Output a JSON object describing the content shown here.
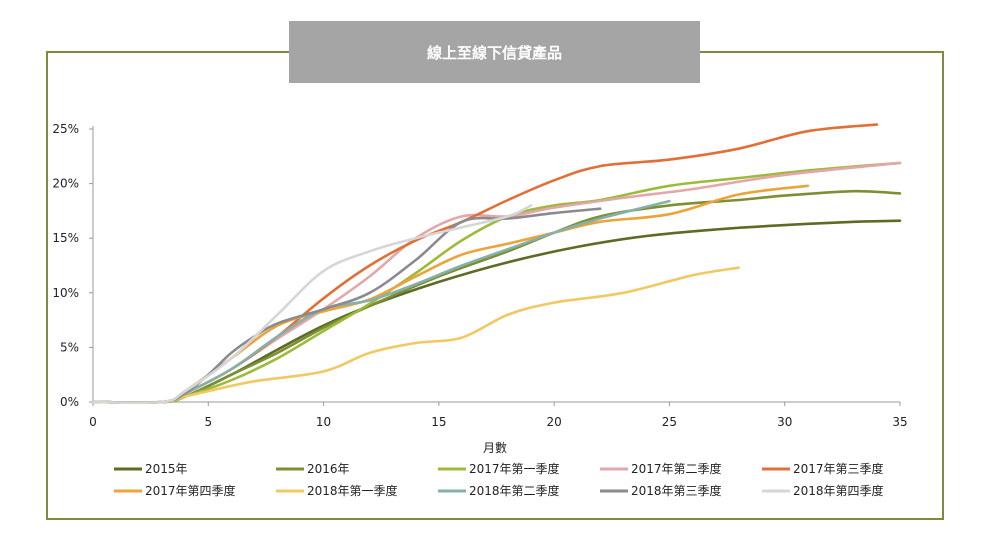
{
  "chart_data": {
    "type": "line",
    "title": "線上至線下信貸產品",
    "xlabel": "月數",
    "ylabel": "",
    "xlim": [
      0,
      35
    ],
    "ylim": [
      0,
      25
    ],
    "xticks": [
      "0",
      "5",
      "10",
      "15",
      "20",
      "25",
      "30",
      "35"
    ],
    "yticks": [
      "0%",
      "5%",
      "10%",
      "15%",
      "20%",
      "25%"
    ],
    "legend_position": "bottom",
    "series": [
      {
        "name": "2015年",
        "color": "#5e6b25",
        "x": [
          0,
          3,
          4,
          6,
          8,
          10,
          12,
          15,
          18,
          21,
          24,
          27,
          30,
          33,
          35
        ],
        "y": [
          0,
          0,
          0.5,
          2.5,
          4.8,
          7,
          8.8,
          11,
          12.8,
          14.2,
          15.2,
          15.8,
          16.2,
          16.5,
          16.6
        ]
      },
      {
        "name": "2016年",
        "color": "#7d8f33",
        "x": [
          0,
          3,
          4,
          6,
          8,
          10,
          12,
          15,
          18,
          20,
          22,
          25,
          28,
          30,
          33,
          35
        ],
        "y": [
          0,
          0,
          0.5,
          2.5,
          4.5,
          6.8,
          8.8,
          11.5,
          13.8,
          15.5,
          17,
          18,
          18.5,
          18.9,
          19.3,
          19.1
        ]
      },
      {
        "name": "2017年第一季度",
        "color": "#9cbb3a",
        "x": [
          0,
          3,
          4,
          6,
          8,
          10,
          12,
          14,
          16,
          18,
          20,
          22,
          25,
          28,
          31,
          35
        ],
        "y": [
          0,
          0,
          0.5,
          2,
          4,
          6.5,
          9,
          11.8,
          14.8,
          17,
          18,
          18.5,
          19.8,
          20.5,
          21.2,
          21.9
        ]
      },
      {
        "name": "2017年第二季度",
        "color": "#e3a7ab",
        "x": [
          0,
          3,
          4,
          6,
          8,
          10,
          12,
          14,
          16,
          18,
          20,
          23,
          26,
          30,
          35
        ],
        "y": [
          0,
          0,
          0.8,
          3,
          5.8,
          8.5,
          11.5,
          15,
          17,
          17,
          17.8,
          18.7,
          19.5,
          20.8,
          21.9
        ]
      },
      {
        "name": "2017年第三季度",
        "color": "#e07037",
        "x": [
          0,
          3,
          4,
          6,
          8,
          10,
          12,
          14,
          16,
          18,
          20,
          22,
          25,
          28,
          31,
          34
        ],
        "y": [
          0,
          0,
          0.8,
          3,
          6,
          9.5,
          12.5,
          14.8,
          16.5,
          18.5,
          20.3,
          21.6,
          22.2,
          23.2,
          24.8,
          25.4
        ]
      },
      {
        "name": "2017年第四季度",
        "color": "#eba43a",
        "x": [
          0,
          3,
          4,
          6,
          8,
          10,
          12,
          14,
          16,
          18,
          20,
          22,
          25,
          28,
          31
        ],
        "y": [
          0,
          0,
          1,
          4,
          7,
          8.3,
          9.4,
          11.5,
          13.5,
          14.5,
          15.5,
          16.5,
          17.2,
          19,
          19.8
        ]
      },
      {
        "name": "2018年第一季度",
        "color": "#f2c862",
        "x": [
          0,
          3,
          4,
          5,
          7,
          10,
          12,
          14,
          16,
          18,
          20,
          23,
          26,
          28
        ],
        "y": [
          0,
          0,
          0.5,
          1,
          1.9,
          2.8,
          4.5,
          5.4,
          5.9,
          8,
          9.1,
          10,
          11.6,
          12.3
        ]
      },
      {
        "name": "2018年第二季度",
        "color": "#86b1ab",
        "x": [
          0,
          3,
          4,
          6,
          8,
          10,
          12,
          14,
          16,
          18,
          20,
          22,
          25
        ],
        "y": [
          0,
          0,
          0.8,
          3,
          6,
          8.5,
          9.3,
          10.8,
          12.5,
          14,
          15.5,
          16.8,
          18.4
        ]
      },
      {
        "name": "2018年第三季度",
        "color": "#8a8a8f",
        "x": [
          0,
          3,
          4,
          5,
          6,
          7,
          8,
          10,
          12,
          14,
          16,
          18,
          20,
          22
        ],
        "y": [
          0,
          0,
          0.8,
          2.5,
          4.5,
          6,
          7.2,
          8.5,
          10,
          13,
          16.5,
          16.8,
          17.3,
          17.7
        ]
      },
      {
        "name": "2018年第四季度",
        "color": "#d6d6d6",
        "x": [
          0,
          3,
          4,
          6,
          8,
          10,
          12,
          14,
          16,
          18,
          19
        ],
        "y": [
          0,
          0,
          1,
          4,
          8,
          12,
          13.8,
          15,
          16,
          17,
          18
        ]
      }
    ]
  }
}
